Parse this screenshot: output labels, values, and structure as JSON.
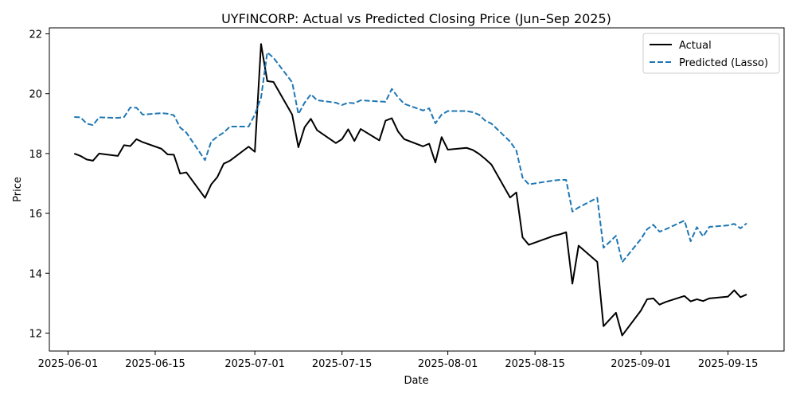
{
  "chart_data": {
    "type": "line",
    "title": "UYFINCORP: Actual vs Predicted Closing Price (Jun–Sep 2025)",
    "xlabel": "Date",
    "ylabel": "Price",
    "x_ticks": [
      "2025-06-01",
      "2025-06-15",
      "2025-07-01",
      "2025-07-15",
      "2025-08-01",
      "2025-08-15",
      "2025-09-01",
      "2025-09-15"
    ],
    "y_ticks": [
      12,
      14,
      16,
      18,
      20,
      22
    ],
    "ylim": [
      11.4,
      22.2
    ],
    "xlim": [
      "2025-05-29",
      "2025-09-24"
    ],
    "legend_position": "top-right",
    "series": [
      {
        "name": "Actual",
        "color": "#000000",
        "style": "solid",
        "points": [
          [
            "2025-06-02",
            18.0
          ],
          [
            "2025-06-03",
            17.92
          ],
          [
            "2025-06-04",
            17.8
          ],
          [
            "2025-06-05",
            17.76
          ],
          [
            "2025-06-06",
            18.0
          ],
          [
            "2025-06-09",
            17.92
          ],
          [
            "2025-06-10",
            18.28
          ],
          [
            "2025-06-11",
            18.25
          ],
          [
            "2025-06-12",
            18.48
          ],
          [
            "2025-06-13",
            18.38
          ],
          [
            "2025-06-16",
            18.16
          ],
          [
            "2025-06-17",
            17.97
          ],
          [
            "2025-06-18",
            17.96
          ],
          [
            "2025-06-19",
            17.33
          ],
          [
            "2025-06-20",
            17.37
          ],
          [
            "2025-06-23",
            16.52
          ],
          [
            "2025-06-24",
            16.97
          ],
          [
            "2025-06-25",
            17.22
          ],
          [
            "2025-06-26",
            17.66
          ],
          [
            "2025-06-27",
            17.76
          ],
          [
            "2025-06-30",
            18.23
          ],
          [
            "2025-07-01",
            18.06
          ],
          [
            "2025-07-02",
            21.66
          ],
          [
            "2025-07-03",
            20.42
          ],
          [
            "2025-07-04",
            20.39
          ],
          [
            "2025-07-07",
            19.3
          ],
          [
            "2025-07-08",
            18.21
          ],
          [
            "2025-07-09",
            18.88
          ],
          [
            "2025-07-10",
            19.16
          ],
          [
            "2025-07-11",
            18.78
          ],
          [
            "2025-07-14",
            18.35
          ],
          [
            "2025-07-15",
            18.48
          ],
          [
            "2025-07-16",
            18.81
          ],
          [
            "2025-07-17",
            18.42
          ],
          [
            "2025-07-18",
            18.82
          ],
          [
            "2025-07-21",
            18.44
          ],
          [
            "2025-07-22",
            19.1
          ],
          [
            "2025-07-23",
            19.18
          ],
          [
            "2025-07-24",
            18.74
          ],
          [
            "2025-07-25",
            18.48
          ],
          [
            "2025-07-28",
            18.24
          ],
          [
            "2025-07-29",
            18.33
          ],
          [
            "2025-07-30",
            17.7
          ],
          [
            "2025-07-31",
            18.55
          ],
          [
            "2025-08-01",
            18.13
          ],
          [
            "2025-08-04",
            18.19
          ],
          [
            "2025-08-05",
            18.12
          ],
          [
            "2025-08-06",
            17.99
          ],
          [
            "2025-08-07",
            17.82
          ],
          [
            "2025-08-08",
            17.63
          ],
          [
            "2025-08-11",
            16.53
          ],
          [
            "2025-08-12",
            16.7
          ],
          [
            "2025-08-13",
            15.2
          ],
          [
            "2025-08-14",
            14.95
          ],
          [
            "2025-08-18",
            15.25
          ],
          [
            "2025-08-19",
            15.3
          ],
          [
            "2025-08-20",
            15.37
          ],
          [
            "2025-08-21",
            13.65
          ],
          [
            "2025-08-22",
            14.92
          ],
          [
            "2025-08-25",
            14.38
          ],
          [
            "2025-08-26",
            12.23
          ],
          [
            "2025-08-28",
            12.68
          ],
          [
            "2025-08-29",
            11.92
          ],
          [
            "2025-09-01",
            12.75
          ],
          [
            "2025-09-02",
            13.13
          ],
          [
            "2025-09-03",
            13.16
          ],
          [
            "2025-09-04",
            12.95
          ],
          [
            "2025-09-05",
            13.04
          ],
          [
            "2025-09-08",
            13.24
          ],
          [
            "2025-09-09",
            13.06
          ],
          [
            "2025-09-10",
            13.13
          ],
          [
            "2025-09-11",
            13.07
          ],
          [
            "2025-09-12",
            13.16
          ],
          [
            "2025-09-15",
            13.22
          ],
          [
            "2025-09-16",
            13.43
          ],
          [
            "2025-09-17",
            13.2
          ],
          [
            "2025-09-18",
            13.29
          ]
        ]
      },
      {
        "name": "Predicted (Lasso)",
        "color": "#1f77b4",
        "style": "dashed",
        "points": [
          [
            "2025-06-02",
            19.22
          ],
          [
            "2025-06-03",
            19.21
          ],
          [
            "2025-06-04",
            19.0
          ],
          [
            "2025-06-05",
            18.95
          ],
          [
            "2025-06-06",
            19.21
          ],
          [
            "2025-06-09",
            19.19
          ],
          [
            "2025-06-10",
            19.22
          ],
          [
            "2025-06-11",
            19.54
          ],
          [
            "2025-06-12",
            19.53
          ],
          [
            "2025-06-13",
            19.3
          ],
          [
            "2025-06-16",
            19.35
          ],
          [
            "2025-06-17",
            19.33
          ],
          [
            "2025-06-18",
            19.28
          ],
          [
            "2025-06-19",
            18.87
          ],
          [
            "2025-06-20",
            18.7
          ],
          [
            "2025-06-23",
            17.78
          ],
          [
            "2025-06-24",
            18.4
          ],
          [
            "2025-06-25",
            18.57
          ],
          [
            "2025-06-26",
            18.7
          ],
          [
            "2025-06-27",
            18.9
          ],
          [
            "2025-06-30",
            18.9
          ],
          [
            "2025-07-01",
            19.3
          ],
          [
            "2025-07-02",
            19.87
          ],
          [
            "2025-07-03",
            21.38
          ],
          [
            "2025-07-04",
            21.2
          ],
          [
            "2025-07-07",
            20.38
          ],
          [
            "2025-07-08",
            19.32
          ],
          [
            "2025-07-09",
            19.7
          ],
          [
            "2025-07-10",
            19.98
          ],
          [
            "2025-07-11",
            19.78
          ],
          [
            "2025-07-14",
            19.7
          ],
          [
            "2025-07-15",
            19.62
          ],
          [
            "2025-07-16",
            19.7
          ],
          [
            "2025-07-17",
            19.68
          ],
          [
            "2025-07-18",
            19.78
          ],
          [
            "2025-07-21",
            19.74
          ],
          [
            "2025-07-22",
            19.73
          ],
          [
            "2025-07-23",
            20.16
          ],
          [
            "2025-07-24",
            19.88
          ],
          [
            "2025-07-25",
            19.66
          ],
          [
            "2025-07-28",
            19.44
          ],
          [
            "2025-07-29",
            19.51
          ],
          [
            "2025-07-30",
            19.01
          ],
          [
            "2025-07-31",
            19.3
          ],
          [
            "2025-08-01",
            19.42
          ],
          [
            "2025-08-04",
            19.42
          ],
          [
            "2025-08-05",
            19.38
          ],
          [
            "2025-08-06",
            19.3
          ],
          [
            "2025-08-07",
            19.1
          ],
          [
            "2025-08-08",
            19.0
          ],
          [
            "2025-08-11",
            18.4
          ],
          [
            "2025-08-12",
            18.1
          ],
          [
            "2025-08-13",
            17.2
          ],
          [
            "2025-08-14",
            16.97
          ],
          [
            "2025-08-18",
            17.1
          ],
          [
            "2025-08-19",
            17.12
          ],
          [
            "2025-08-20",
            17.12
          ],
          [
            "2025-08-21",
            16.06
          ],
          [
            "2025-08-22",
            16.2
          ],
          [
            "2025-08-25",
            16.52
          ],
          [
            "2025-08-26",
            14.85
          ],
          [
            "2025-08-28",
            15.25
          ],
          [
            "2025-08-29",
            14.37
          ],
          [
            "2025-09-01",
            15.14
          ],
          [
            "2025-09-02",
            15.47
          ],
          [
            "2025-09-03",
            15.62
          ],
          [
            "2025-09-04",
            15.39
          ],
          [
            "2025-09-05",
            15.47
          ],
          [
            "2025-09-08",
            15.76
          ],
          [
            "2025-09-09",
            15.07
          ],
          [
            "2025-09-10",
            15.54
          ],
          [
            "2025-09-11",
            15.23
          ],
          [
            "2025-09-12",
            15.55
          ],
          [
            "2025-09-15",
            15.6
          ],
          [
            "2025-09-16",
            15.65
          ],
          [
            "2025-09-17",
            15.5
          ],
          [
            "2025-09-18",
            15.67
          ]
        ]
      }
    ]
  }
}
